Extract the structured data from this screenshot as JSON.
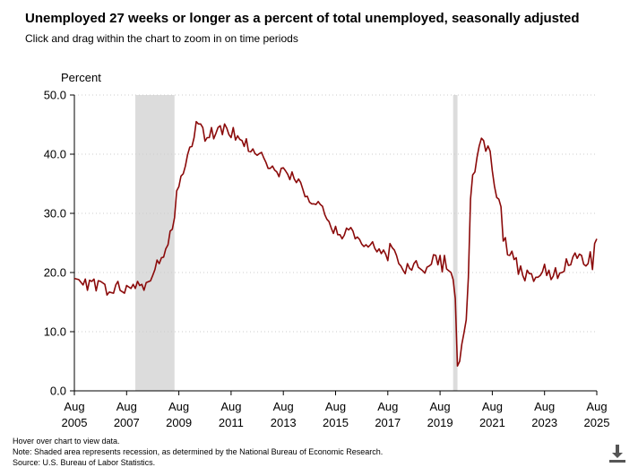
{
  "header": {
    "title": "Unemployed 27 weeks or longer as a percent of total unemployed, seasonally adjusted",
    "subtitle": "Click and drag within the chart to zoom in on time periods"
  },
  "notes": {
    "hover": "Hover over chart to view data.",
    "note": "Note: Shaded area represents recession, as determined by the National Bureau of Economic Research.",
    "source": "Source: U.S. Bureau of Labor Statistics."
  },
  "download": {
    "icon": "download-icon"
  },
  "colors": {
    "line": "#8b0a0a",
    "recession": "#dcdcdc",
    "grid": "#cccccc"
  },
  "chart_data": {
    "type": "line",
    "title": "Unemployed 27 weeks or longer as a percent of total unemployed, seasonally adjusted",
    "ylabel": "Percent",
    "xlabel": "",
    "ylim": [
      0,
      50
    ],
    "xlim": [
      2005.583,
      2025.583
    ],
    "y_ticks": [
      "0.0",
      "10.0",
      "20.0",
      "30.0",
      "40.0",
      "50.0"
    ],
    "x_ticks": [
      {
        "month": "Aug",
        "year": "2005"
      },
      {
        "month": "Aug",
        "year": "2007"
      },
      {
        "month": "Aug",
        "year": "2009"
      },
      {
        "month": "Aug",
        "year": "2011"
      },
      {
        "month": "Aug",
        "year": "2013"
      },
      {
        "month": "Aug",
        "year": "2015"
      },
      {
        "month": "Aug",
        "year": "2017"
      },
      {
        "month": "Aug",
        "year": "2019"
      },
      {
        "month": "Aug",
        "year": "2021"
      },
      {
        "month": "Aug",
        "year": "2023"
      },
      {
        "month": "Aug",
        "year": "2025"
      }
    ],
    "recessions": [
      {
        "start": 2007.917,
        "end": 2009.417,
        "label": "Recession Dec 2007 - Jun 2009"
      },
      {
        "start": 2020.083,
        "end": 2020.25,
        "label": "Recession Feb 2020 - Apr 2020"
      }
    ],
    "series": [
      {
        "name": "Unemployed 27 weeks or longer, percent of total",
        "points": [
          [
            2005.583,
            19.0
          ],
          [
            2005.75,
            18.8
          ],
          [
            2005.917,
            17.9
          ],
          [
            2006.0,
            18.9
          ],
          [
            2006.083,
            17.0
          ],
          [
            2006.167,
            18.7
          ],
          [
            2006.25,
            18.5
          ],
          [
            2006.333,
            18.9
          ],
          [
            2006.417,
            16.9
          ],
          [
            2006.5,
            18.6
          ],
          [
            2006.583,
            18.5
          ],
          [
            2006.75,
            18.0
          ],
          [
            2006.833,
            16.2
          ],
          [
            2006.917,
            16.7
          ],
          [
            2007.083,
            16.5
          ],
          [
            2007.167,
            17.9
          ],
          [
            2007.25,
            18.5
          ],
          [
            2007.333,
            17.0
          ],
          [
            2007.5,
            16.5
          ],
          [
            2007.583,
            17.8
          ],
          [
            2007.75,
            17.3
          ],
          [
            2007.833,
            18.0
          ],
          [
            2007.917,
            17.3
          ],
          [
            2008.0,
            18.5
          ],
          [
            2008.083,
            17.8
          ],
          [
            2008.167,
            18.0
          ],
          [
            2008.25,
            17.0
          ],
          [
            2008.333,
            18.3
          ],
          [
            2008.5,
            18.6
          ],
          [
            2008.583,
            19.5
          ],
          [
            2008.667,
            20.5
          ],
          [
            2008.75,
            22.1
          ],
          [
            2008.833,
            21.5
          ],
          [
            2008.917,
            22.5
          ],
          [
            2009.0,
            22.6
          ],
          [
            2009.083,
            24.0
          ],
          [
            2009.167,
            24.7
          ],
          [
            2009.25,
            27.0
          ],
          [
            2009.333,
            27.3
          ],
          [
            2009.417,
            29.3
          ],
          [
            2009.5,
            33.8
          ],
          [
            2009.583,
            34.5
          ],
          [
            2009.667,
            36.3
          ],
          [
            2009.75,
            36.7
          ],
          [
            2009.833,
            38.0
          ],
          [
            2009.917,
            39.9
          ],
          [
            2010.0,
            41.2
          ],
          [
            2010.083,
            41.3
          ],
          [
            2010.167,
            42.8
          ],
          [
            2010.25,
            45.5
          ],
          [
            2010.333,
            45.1
          ],
          [
            2010.417,
            45.1
          ],
          [
            2010.5,
            44.5
          ],
          [
            2010.583,
            42.2
          ],
          [
            2010.667,
            42.8
          ],
          [
            2010.75,
            42.8
          ],
          [
            2010.833,
            44.5
          ],
          [
            2010.917,
            42.6
          ],
          [
            2011.0,
            43.5
          ],
          [
            2011.083,
            44.5
          ],
          [
            2011.167,
            44.8
          ],
          [
            2011.25,
            43.3
          ],
          [
            2011.333,
            45.1
          ],
          [
            2011.417,
            44.4
          ],
          [
            2011.5,
            43.3
          ],
          [
            2011.583,
            42.8
          ],
          [
            2011.667,
            44.5
          ],
          [
            2011.75,
            42.4
          ],
          [
            2011.833,
            43.1
          ],
          [
            2011.917,
            42.5
          ],
          [
            2012.0,
            42.3
          ],
          [
            2012.083,
            41.3
          ],
          [
            2012.167,
            42.6
          ],
          [
            2012.25,
            40.5
          ],
          [
            2012.333,
            40.4
          ],
          [
            2012.417,
            40.9
          ],
          [
            2012.5,
            40.1
          ],
          [
            2012.583,
            39.8
          ],
          [
            2012.667,
            40.1
          ],
          [
            2012.75,
            40.3
          ],
          [
            2012.833,
            39.4
          ],
          [
            2012.917,
            38.6
          ],
          [
            2013.0,
            37.6
          ],
          [
            2013.083,
            37.6
          ],
          [
            2013.167,
            38.0
          ],
          [
            2013.25,
            37.3
          ],
          [
            2013.333,
            37.0
          ],
          [
            2013.417,
            36.2
          ],
          [
            2013.5,
            37.6
          ],
          [
            2013.583,
            37.7
          ],
          [
            2013.667,
            37.2
          ],
          [
            2013.75,
            36.6
          ],
          [
            2013.833,
            35.7
          ],
          [
            2013.917,
            37.0
          ],
          [
            2014.0,
            35.8
          ],
          [
            2014.083,
            35.2
          ],
          [
            2014.167,
            35.8
          ],
          [
            2014.25,
            35.2
          ],
          [
            2014.333,
            34.0
          ],
          [
            2014.417,
            32.8
          ],
          [
            2014.5,
            32.9
          ],
          [
            2014.583,
            31.9
          ],
          [
            2014.667,
            31.6
          ],
          [
            2014.75,
            31.6
          ],
          [
            2014.833,
            31.5
          ],
          [
            2014.917,
            32.0
          ],
          [
            2015.0,
            31.5
          ],
          [
            2015.083,
            31.2
          ],
          [
            2015.167,
            29.8
          ],
          [
            2015.25,
            29.0
          ],
          [
            2015.333,
            28.6
          ],
          [
            2015.417,
            27.5
          ],
          [
            2015.5,
            26.6
          ],
          [
            2015.583,
            27.8
          ],
          [
            2015.667,
            26.4
          ],
          [
            2015.75,
            26.4
          ],
          [
            2015.833,
            25.7
          ],
          [
            2015.917,
            26.3
          ],
          [
            2016.0,
            27.5
          ],
          [
            2016.083,
            27.2
          ],
          [
            2016.167,
            27.6
          ],
          [
            2016.25,
            27.0
          ],
          [
            2016.333,
            25.7
          ],
          [
            2016.417,
            26.0
          ],
          [
            2016.5,
            25.6
          ],
          [
            2016.583,
            24.8
          ],
          [
            2016.667,
            24.4
          ],
          [
            2016.75,
            24.7
          ],
          [
            2016.833,
            24.3
          ],
          [
            2016.917,
            24.7
          ],
          [
            2017.0,
            25.2
          ],
          [
            2017.083,
            24.1
          ],
          [
            2017.167,
            23.5
          ],
          [
            2017.25,
            24.0
          ],
          [
            2017.333,
            23.2
          ],
          [
            2017.417,
            23.8
          ],
          [
            2017.5,
            23.1
          ],
          [
            2017.583,
            22.0
          ],
          [
            2017.667,
            24.9
          ],
          [
            2017.75,
            24.2
          ],
          [
            2017.833,
            23.8
          ],
          [
            2017.917,
            22.9
          ],
          [
            2018.0,
            21.5
          ],
          [
            2018.083,
            21.1
          ],
          [
            2018.167,
            20.4
          ],
          [
            2018.25,
            19.8
          ],
          [
            2018.333,
            21.5
          ],
          [
            2018.417,
            20.7
          ],
          [
            2018.5,
            20.4
          ],
          [
            2018.583,
            21.5
          ],
          [
            2018.667,
            22.0
          ],
          [
            2018.75,
            20.9
          ],
          [
            2018.833,
            20.6
          ],
          [
            2018.917,
            20.3
          ],
          [
            2019.0,
            19.9
          ],
          [
            2019.083,
            20.9
          ],
          [
            2019.167,
            21.1
          ],
          [
            2019.25,
            21.4
          ],
          [
            2019.333,
            23.0
          ],
          [
            2019.417,
            22.9
          ],
          [
            2019.5,
            21.3
          ],
          [
            2019.583,
            22.9
          ],
          [
            2019.667,
            20.1
          ],
          [
            2019.75,
            22.9
          ],
          [
            2019.833,
            20.6
          ],
          [
            2019.917,
            20.3
          ],
          [
            2020.0,
            20.0
          ],
          [
            2020.083,
            18.8
          ],
          [
            2020.167,
            15.6
          ],
          [
            2020.25,
            4.2
          ],
          [
            2020.333,
            5.0
          ],
          [
            2020.417,
            7.9
          ],
          [
            2020.5,
            9.8
          ],
          [
            2020.583,
            12.0
          ],
          [
            2020.667,
            19.2
          ],
          [
            2020.75,
            32.4
          ],
          [
            2020.833,
            36.5
          ],
          [
            2020.917,
            37.0
          ],
          [
            2021.0,
            39.5
          ],
          [
            2021.083,
            41.4
          ],
          [
            2021.167,
            42.7
          ],
          [
            2021.25,
            42.3
          ],
          [
            2021.333,
            40.5
          ],
          [
            2021.417,
            41.4
          ],
          [
            2021.5,
            40.5
          ],
          [
            2021.583,
            37.2
          ],
          [
            2021.667,
            34.6
          ],
          [
            2021.75,
            32.7
          ],
          [
            2021.833,
            32.4
          ],
          [
            2021.917,
            31.1
          ],
          [
            2022.0,
            25.3
          ],
          [
            2022.083,
            25.9
          ],
          [
            2022.167,
            23.0
          ],
          [
            2022.25,
            22.9
          ],
          [
            2022.333,
            23.6
          ],
          [
            2022.417,
            22.2
          ],
          [
            2022.5,
            22.5
          ],
          [
            2022.583,
            19.7
          ],
          [
            2022.667,
            21.1
          ],
          [
            2022.75,
            19.5
          ],
          [
            2022.833,
            18.6
          ],
          [
            2022.917,
            20.4
          ],
          [
            2023.0,
            19.8
          ],
          [
            2023.083,
            19.8
          ],
          [
            2023.167,
            18.5
          ],
          [
            2023.25,
            19.2
          ],
          [
            2023.333,
            19.2
          ],
          [
            2023.417,
            19.5
          ],
          [
            2023.5,
            20.1
          ],
          [
            2023.583,
            21.4
          ],
          [
            2023.667,
            19.5
          ],
          [
            2023.75,
            20.4
          ],
          [
            2023.833,
            18.8
          ],
          [
            2023.917,
            19.4
          ],
          [
            2024.0,
            20.8
          ],
          [
            2024.083,
            19.0
          ],
          [
            2024.167,
            19.9
          ],
          [
            2024.25,
            20.0
          ],
          [
            2024.333,
            20.2
          ],
          [
            2024.417,
            22.3
          ],
          [
            2024.5,
            21.2
          ],
          [
            2024.583,
            21.3
          ],
          [
            2024.667,
            22.6
          ],
          [
            2024.75,
            23.3
          ],
          [
            2024.833,
            22.4
          ],
          [
            2024.917,
            23.1
          ],
          [
            2025.0,
            22.9
          ],
          [
            2025.083,
            21.4
          ],
          [
            2025.167,
            21.1
          ],
          [
            2025.25,
            21.5
          ],
          [
            2025.333,
            23.5
          ],
          [
            2025.417,
            20.5
          ],
          [
            2025.5,
            24.9
          ],
          [
            2025.583,
            25.7
          ]
        ]
      }
    ]
  }
}
